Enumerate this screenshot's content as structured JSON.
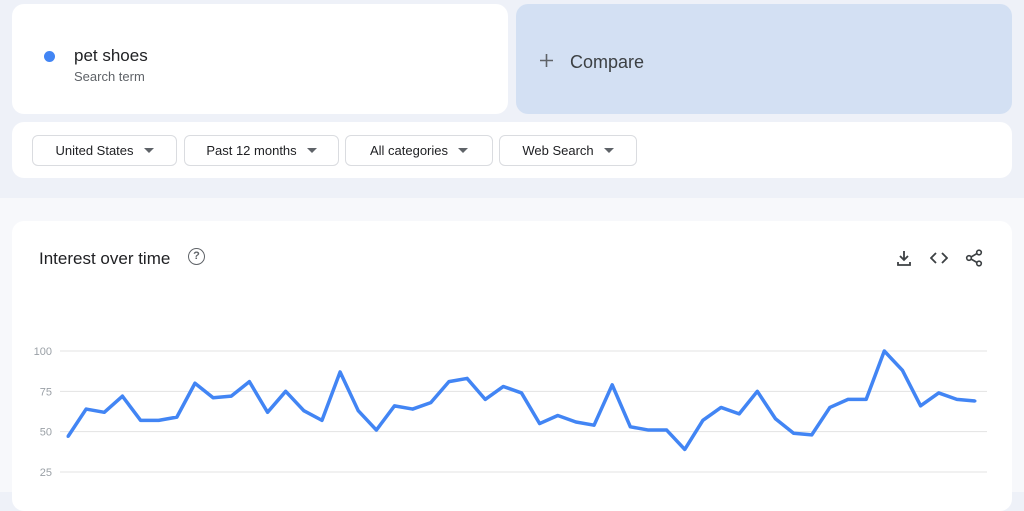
{
  "search_term": {
    "name": "pet shoes",
    "label": "Search term",
    "color": "#4285f4"
  },
  "compare": {
    "label": "Compare",
    "icon": "plus-icon"
  },
  "filters": [
    {
      "label": "United States"
    },
    {
      "label": "Past 12 months"
    },
    {
      "label": "All categories"
    },
    {
      "label": "Web Search"
    }
  ],
  "panel": {
    "title": "Interest over time",
    "icons": [
      "help-icon",
      "download-icon",
      "embed-code-icon",
      "share-icon"
    ]
  },
  "chart_data": {
    "type": "line",
    "title": "Interest over time",
    "yticks": [
      25,
      50,
      75,
      100
    ],
    "ylim": [
      0,
      100
    ],
    "grid": true,
    "color": "#4285f4",
    "values": [
      47,
      64,
      62,
      72,
      57,
      57,
      59,
      80,
      71,
      72,
      81,
      62,
      75,
      63,
      57,
      87,
      63,
      51,
      66,
      64,
      68,
      81,
      83,
      70,
      78,
      74,
      55,
      60,
      56,
      54,
      79,
      53,
      51,
      51,
      39,
      57,
      65,
      61,
      75,
      58,
      49,
      48,
      65,
      70,
      70,
      100,
      88,
      66,
      74,
      70,
      69
    ]
  }
}
